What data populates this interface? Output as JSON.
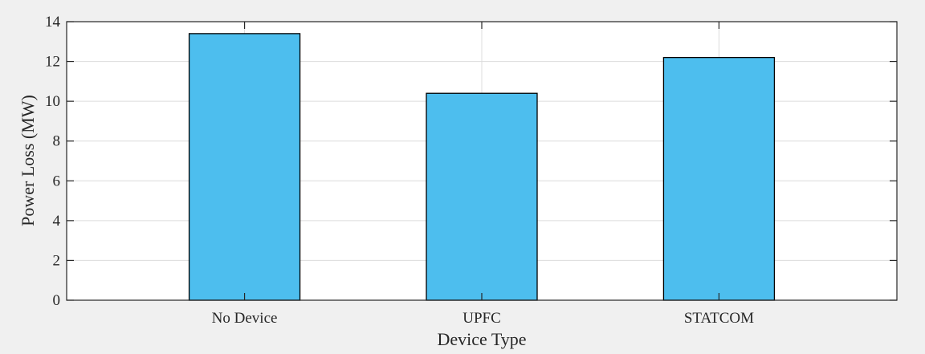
{
  "chart_data": {
    "type": "bar",
    "categories": [
      "No Device",
      "UPFC",
      "STATCOM"
    ],
    "values": [
      13.4,
      10.4,
      12.2
    ],
    "xlabel": "Device Type",
    "ylabel": "Power Loss (MW)",
    "ylim": [
      0,
      14
    ],
    "yticks": [
      0,
      2,
      4,
      6,
      8,
      10,
      12,
      14
    ],
    "grid": true,
    "bar_color": "#4dbeee",
    "bar_edge_color": "#000000",
    "grid_color": "#dcdcdc",
    "background_color": "#f0f0f0",
    "plot_background_color": "#ffffff"
  }
}
